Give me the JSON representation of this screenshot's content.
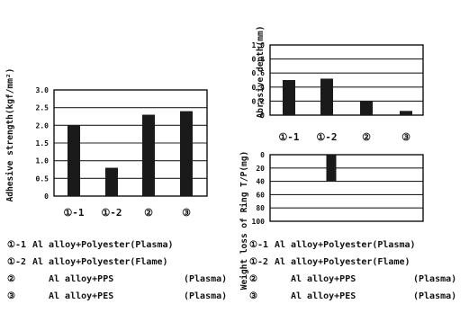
{
  "chart_data": [
    {
      "id": "adhesive",
      "type": "bar",
      "ylabel": "Adhesive strength(kgf/mm²)",
      "ylim": [
        0,
        3.0
      ],
      "yticks": [
        "3.0",
        "2.5",
        "2.0",
        "1.5",
        "1.0",
        "0.5",
        "0"
      ],
      "ytick_values": [
        3.0,
        2.5,
        2.0,
        1.5,
        1.0,
        0.5,
        0
      ],
      "grid": true,
      "categories": [
        "①-1",
        "①-2",
        "②",
        "③"
      ],
      "values": [
        2.0,
        0.8,
        2.3,
        2.4
      ]
    },
    {
      "id": "abrasive",
      "type": "bar",
      "ylabel": "Abrasive depth(mm)",
      "ylim": [
        0,
        1.0
      ],
      "yticks": [
        "1.0",
        "0.8",
        "0.6",
        "0.4",
        "0.2",
        "0"
      ],
      "ytick_values": [
        1.0,
        0.8,
        0.6,
        0.4,
        0.2,
        0
      ],
      "grid": true,
      "categories": [
        "①-1",
        "①-2",
        "②",
        "③"
      ],
      "values": [
        0.5,
        0.52,
        0.2,
        0.06
      ]
    },
    {
      "id": "weightloss",
      "type": "bar",
      "ylabel": "Weight loss of Ring T/P(mg)",
      "ylim": [
        0,
        100
      ],
      "inverted": true,
      "yticks": [
        "0",
        "20",
        "40",
        "60",
        "80",
        "100"
      ],
      "ytick_values": [
        0,
        20,
        40,
        60,
        80,
        100
      ],
      "grid": true,
      "categories": [
        "①-1",
        "①-2",
        "②",
        "③"
      ],
      "values": [
        0,
        40,
        0,
        0
      ]
    }
  ],
  "legend_left": [
    {
      "mark": "①-1",
      "text": "Al alloy+Polyester(Plasma)"
    },
    {
      "mark": "①-2",
      "text": "Al alloy+Polyester(Flame)"
    },
    {
      "mark": "②",
      "text": "Al alloy+PPS",
      "tail": "(Plasma)"
    },
    {
      "mark": "③",
      "text": "Al alloy+PES",
      "tail": "(Plasma)"
    }
  ],
  "legend_right": [
    {
      "mark": "①-1",
      "text": "Al alloy+Polyester(Plasma)"
    },
    {
      "mark": "①-2",
      "text": "Al alloy+Polyester(Flame)"
    },
    {
      "mark": "②",
      "text": "Al alloy+PPS",
      "tail": "(Plasma)"
    },
    {
      "mark": "③",
      "text": "Al alloy+PES",
      "tail": "(Plasma)"
    }
  ],
  "colors": {
    "bar": "#1a1a1a",
    "axis": "#111111",
    "grid": "#222222"
  }
}
